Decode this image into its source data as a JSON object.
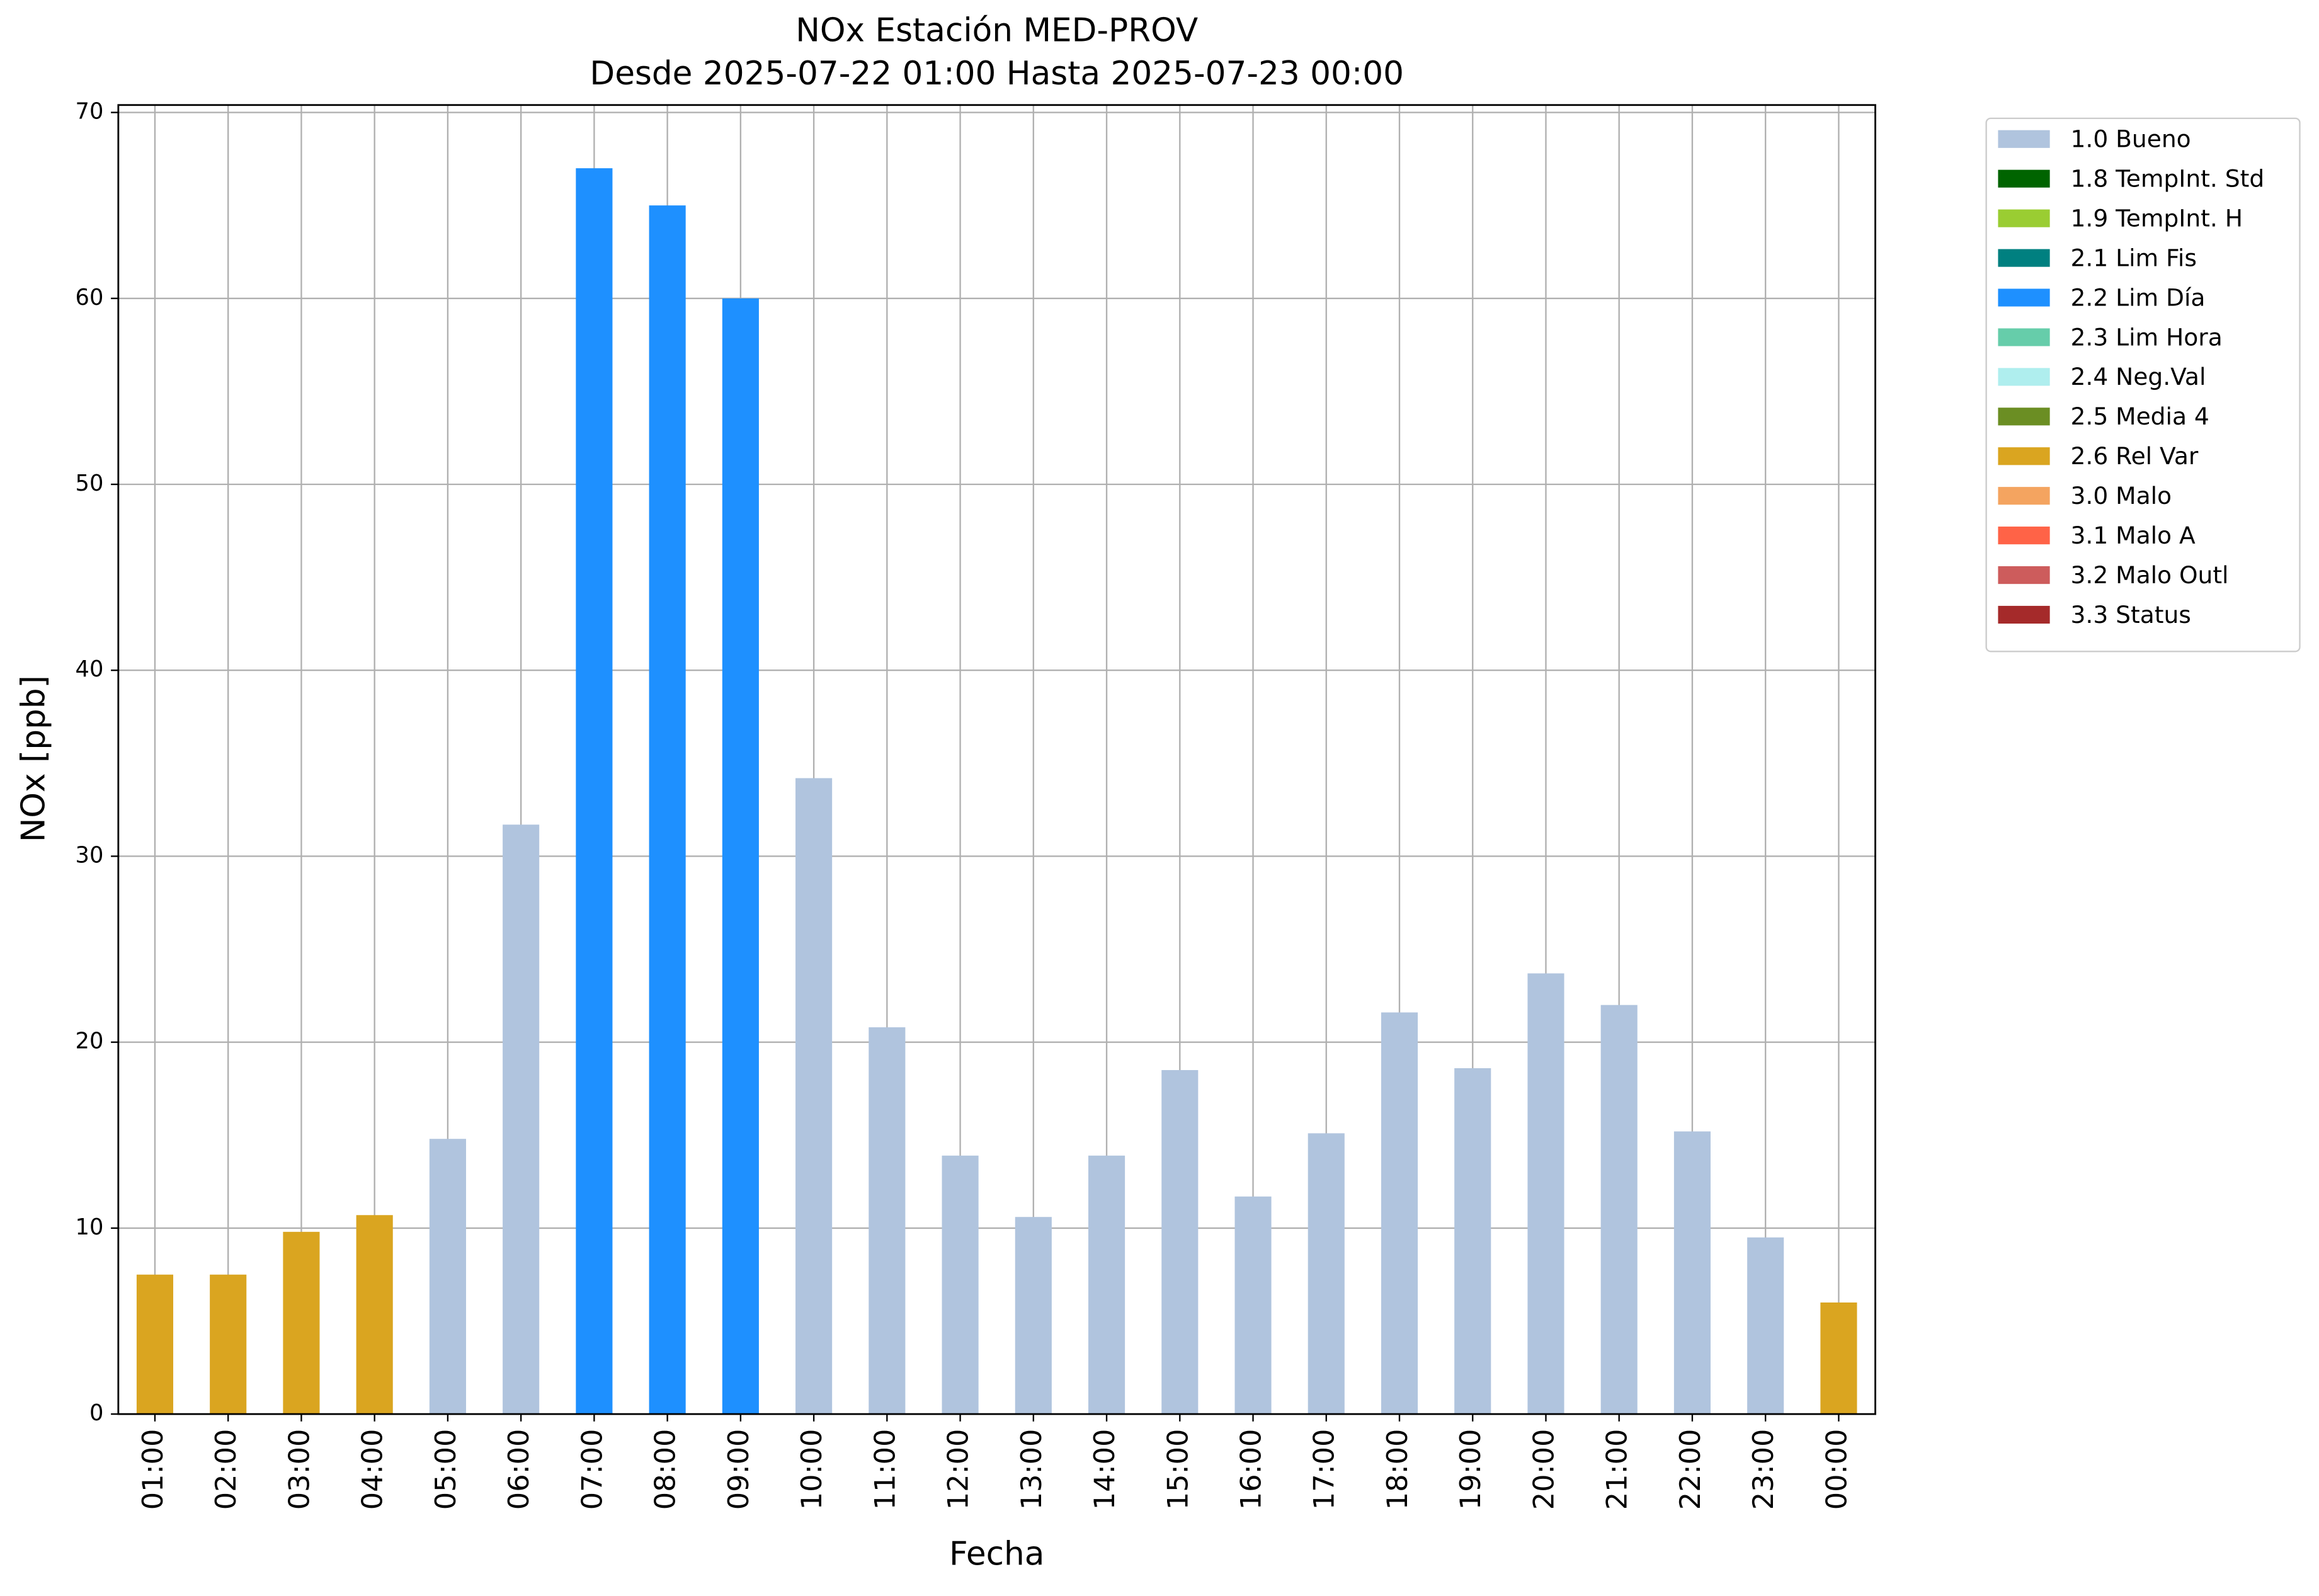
{
  "chart_data": {
    "type": "stacked-bar",
    "title": "NOx Estación MED-PROV",
    "subtitle": "Desde 2025-07-22 01:00 Hasta 2025-07-23 00:00",
    "x_label": "Fecha",
    "y_label": "NOx [ppb]",
    "categories": [
      "01:00",
      "02:00",
      "03:00",
      "04:00",
      "05:00",
      "06:00",
      "07:00",
      "08:00",
      "09:00",
      "10:00",
      "11:00",
      "12:00",
      "13:00",
      "14:00",
      "15:00",
      "16:00",
      "17:00",
      "18:00",
      "19:00",
      "20:00",
      "21:00",
      "22:00",
      "23:00",
      "00:00"
    ],
    "series": [
      {
        "name": "1.0 Bueno",
        "color": "#b0c4de",
        "values": [
          null,
          null,
          null,
          null,
          14.8,
          31.7,
          null,
          null,
          null,
          34.2,
          20.8,
          13.9,
          10.6,
          13.9,
          18.5,
          11.7,
          15.1,
          21.6,
          18.6,
          23.7,
          22.0,
          15.2,
          9.5,
          null
        ]
      },
      {
        "name": "1.8 TempInt. Std",
        "color": "#006400",
        "values": [
          null,
          null,
          null,
          null,
          null,
          null,
          null,
          null,
          null,
          null,
          null,
          null,
          null,
          null,
          null,
          null,
          null,
          null,
          null,
          null,
          null,
          null,
          null,
          null
        ]
      },
      {
        "name": "1.9 TempInt. H",
        "color": "#9acd32",
        "values": [
          null,
          null,
          null,
          null,
          null,
          null,
          null,
          null,
          null,
          null,
          null,
          null,
          null,
          null,
          null,
          null,
          null,
          null,
          null,
          null,
          null,
          null,
          null,
          null
        ]
      },
      {
        "name": "2.1 Lim Fis",
        "color": "#008080",
        "values": [
          null,
          null,
          null,
          null,
          null,
          null,
          null,
          null,
          null,
          null,
          null,
          null,
          null,
          null,
          null,
          null,
          null,
          null,
          null,
          null,
          null,
          null,
          null,
          null
        ]
      },
      {
        "name": "2.2 Lim Día",
        "color": "#1e90ff",
        "values": [
          null,
          null,
          null,
          null,
          null,
          null,
          67.0,
          65.0,
          60.0,
          null,
          null,
          null,
          null,
          null,
          null,
          null,
          null,
          null,
          null,
          null,
          null,
          null,
          null,
          null
        ]
      },
      {
        "name": "2.3 Lim Hora",
        "color": "#66cdaa",
        "values": [
          null,
          null,
          null,
          null,
          null,
          null,
          null,
          null,
          null,
          null,
          null,
          null,
          null,
          null,
          null,
          null,
          null,
          null,
          null,
          null,
          null,
          null,
          null,
          null
        ]
      },
      {
        "name": "2.4 Neg.Val",
        "color": "#afeeee",
        "values": [
          null,
          null,
          null,
          null,
          null,
          null,
          null,
          null,
          null,
          null,
          null,
          null,
          null,
          null,
          null,
          null,
          null,
          null,
          null,
          null,
          null,
          null,
          null,
          null
        ]
      },
      {
        "name": "2.5 Media 4",
        "color": "#6b8e23",
        "values": [
          null,
          null,
          null,
          null,
          null,
          null,
          null,
          null,
          null,
          null,
          null,
          null,
          null,
          null,
          null,
          null,
          null,
          null,
          null,
          null,
          null,
          null,
          null,
          null
        ]
      },
      {
        "name": "2.6 Rel Var",
        "color": "#daa520",
        "values": [
          7.5,
          7.5,
          9.8,
          10.7,
          null,
          null,
          null,
          null,
          null,
          null,
          null,
          null,
          null,
          null,
          null,
          null,
          null,
          null,
          null,
          null,
          null,
          null,
          null,
          6.0
        ]
      },
      {
        "name": "3.0 Malo",
        "color": "#f4a460",
        "values": [
          null,
          null,
          null,
          null,
          null,
          null,
          null,
          null,
          null,
          null,
          null,
          null,
          null,
          null,
          null,
          null,
          null,
          null,
          null,
          null,
          null,
          null,
          null,
          null
        ]
      },
      {
        "name": "3.1 Malo A",
        "color": "#ff6347",
        "values": [
          null,
          null,
          null,
          null,
          null,
          null,
          null,
          null,
          null,
          null,
          null,
          null,
          null,
          null,
          null,
          null,
          null,
          null,
          null,
          null,
          null,
          null,
          null,
          null
        ]
      },
      {
        "name": "3.2 Malo Outl",
        "color": "#cd5c5c",
        "values": [
          null,
          null,
          null,
          null,
          null,
          null,
          null,
          null,
          null,
          null,
          null,
          null,
          null,
          null,
          null,
          null,
          null,
          null,
          null,
          null,
          null,
          null,
          null,
          null
        ]
      },
      {
        "name": "3.3 Status",
        "color": "#a52a2a",
        "values": [
          null,
          null,
          null,
          null,
          null,
          null,
          null,
          null,
          null,
          null,
          null,
          null,
          null,
          null,
          null,
          null,
          null,
          null,
          null,
          null,
          null,
          null,
          null,
          null
        ]
      }
    ],
    "ylim": [
      0,
      70.4
    ],
    "yticks": [
      0,
      10,
      20,
      30,
      40,
      50,
      60,
      70
    ],
    "grid": true,
    "legend": "outside-right"
  }
}
